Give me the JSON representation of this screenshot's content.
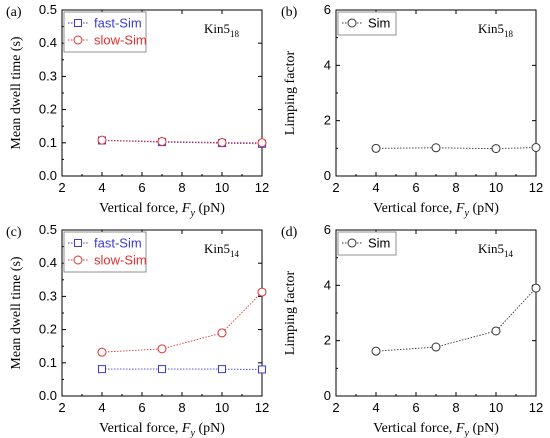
{
  "chart_data": [
    {
      "type": "line",
      "panel": "(a)",
      "annotation": {
        "base": "Kin5",
        "sub": "18"
      },
      "xlabel": "Vertical force, F_y (pN)",
      "ylabel": "Mean dwell time (s)",
      "xlim": [
        2,
        12
      ],
      "ylim": [
        0,
        0.5
      ],
      "xticks": [
        "2",
        "4",
        "6",
        "8",
        "10",
        "12"
      ],
      "yticks": [
        "0.0",
        "0.1",
        "0.2",
        "0.3",
        "0.4",
        "0.5"
      ],
      "legend_position": "top-left",
      "x": [
        4,
        7,
        10,
        12
      ],
      "series": [
        {
          "name": "fast-Sim",
          "color": "#3b3bd9",
          "marker": "square",
          "values": [
            0.107,
            0.102,
            0.099,
            0.097
          ]
        },
        {
          "name": "slow-Sim",
          "color": "#e03030",
          "marker": "circle",
          "values": [
            0.108,
            0.104,
            0.101,
            0.1
          ]
        }
      ]
    },
    {
      "type": "line",
      "panel": "(b)",
      "annotation": {
        "base": "Kin5",
        "sub": "18"
      },
      "xlabel": "Vertical force, F_y (pN)",
      "ylabel": "Limping factor",
      "xlim": [
        2,
        12
      ],
      "ylim": [
        0,
        6
      ],
      "xticks": [
        "2",
        "4",
        "6",
        "8",
        "10",
        "12"
      ],
      "yticks": [
        "0",
        "2",
        "4",
        "6"
      ],
      "legend_position": "top-left",
      "x": [
        4,
        7,
        10,
        12
      ],
      "series": [
        {
          "name": "Sim",
          "color": "#333333",
          "marker": "circle",
          "values": [
            1.0,
            1.02,
            0.99,
            1.03
          ]
        }
      ]
    },
    {
      "type": "line",
      "panel": "(c)",
      "annotation": {
        "base": "Kin5",
        "sub": "14"
      },
      "xlabel": "Vertical force, F_y (pN)",
      "ylabel": "Mean dwell time (s)",
      "xlim": [
        2,
        12
      ],
      "ylim": [
        0,
        0.5
      ],
      "xticks": [
        "2",
        "4",
        "6",
        "8",
        "10",
        "12"
      ],
      "yticks": [
        "0.0",
        "0.1",
        "0.2",
        "0.3",
        "0.4",
        "0.5"
      ],
      "legend_position": "top-left",
      "x": [
        4,
        7,
        10,
        12
      ],
      "series": [
        {
          "name": "fast-Sim",
          "color": "#3b3bd9",
          "marker": "square",
          "values": [
            0.081,
            0.081,
            0.081,
            0.08
          ]
        },
        {
          "name": "slow-Sim",
          "color": "#e03030",
          "marker": "circle",
          "values": [
            0.132,
            0.142,
            0.19,
            0.313
          ]
        }
      ]
    },
    {
      "type": "line",
      "panel": "(d)",
      "annotation": {
        "base": "Kin5",
        "sub": "14"
      },
      "xlabel": "Vertical force, F_y (pN)",
      "ylabel": "Limping factor",
      "xlim": [
        2,
        12
      ],
      "ylim": [
        0,
        6
      ],
      "xticks": [
        "2",
        "4",
        "6",
        "8",
        "10",
        "12"
      ],
      "yticks": [
        "0",
        "2",
        "4",
        "6"
      ],
      "legend_position": "top-left",
      "x": [
        4,
        7,
        10,
        12
      ],
      "series": [
        {
          "name": "Sim",
          "color": "#333333",
          "marker": "circle",
          "values": [
            1.62,
            1.77,
            2.35,
            3.9
          ]
        }
      ]
    }
  ]
}
